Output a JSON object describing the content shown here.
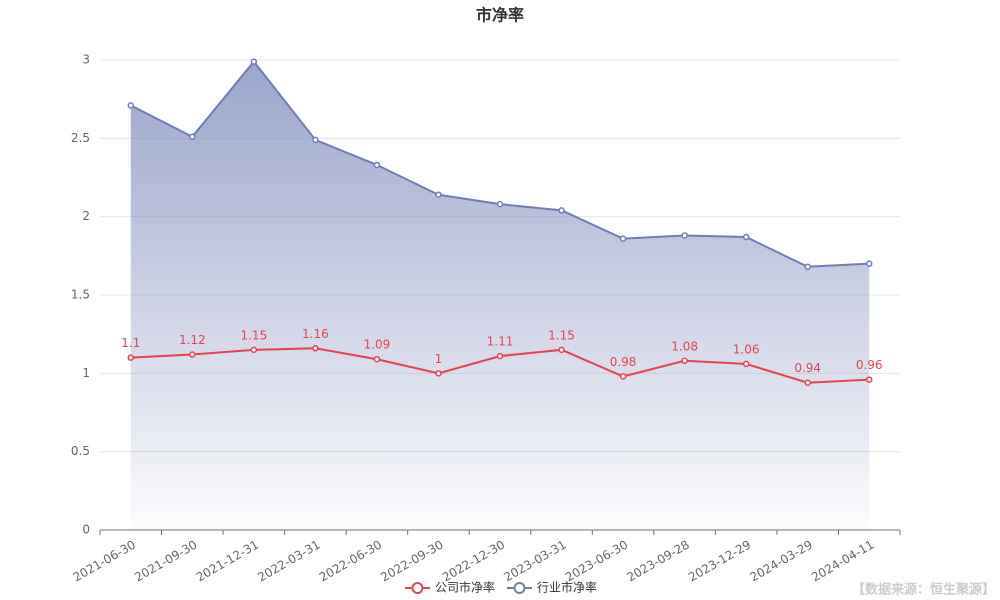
{
  "chart_data": {
    "type": "line",
    "title": "市净率",
    "categories": [
      "2021-06-30",
      "2021-09-30",
      "2021-12-31",
      "2022-03-31",
      "2022-06-30",
      "2022-09-30",
      "2022-12-30",
      "2023-03-31",
      "2023-06-30",
      "2023-09-28",
      "2023-12-29",
      "2024-03-29",
      "2024-04-11"
    ],
    "series": [
      {
        "name": "公司市净率",
        "color": "#e8424f",
        "show_labels": true,
        "area": false,
        "values": [
          1.1,
          1.12,
          1.15,
          1.16,
          1.09,
          1,
          1.11,
          1.15,
          0.98,
          1.08,
          1.06,
          0.94,
          0.96
        ]
      },
      {
        "name": "行业市净率",
        "color": "#6f7db5",
        "show_labels": false,
        "area": true,
        "values": [
          2.71,
          2.51,
          2.99,
          2.49,
          2.33,
          2.14,
          2.08,
          2.04,
          1.86,
          1.88,
          1.87,
          1.68,
          1.7
        ]
      }
    ],
    "ylim": [
      0,
      3
    ],
    "yticks": [
      0,
      0.5,
      1,
      1.5,
      2,
      2.5,
      3
    ],
    "grid": true,
    "legend": "bottom",
    "source": "【数据来源：恒生聚源】"
  }
}
